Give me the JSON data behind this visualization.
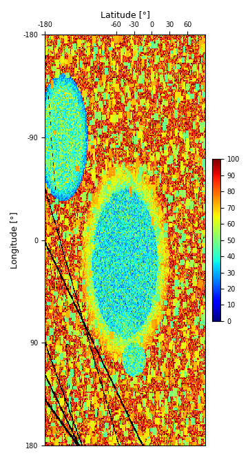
{
  "title": "Latitude [°]",
  "ylabel": "Longitude [°]",
  "colorbar_label": "",
  "xlim": [
    -180,
    90
  ],
  "ylim": [
    180,
    -180
  ],
  "xticks": [
    -180,
    -60,
    -30,
    0,
    30,
    60
  ],
  "yticks": [
    180,
    90,
    0,
    -90,
    -180
  ],
  "ytick_labels": [
    "180",
    "90",
    "0",
    "-90",
    "-180"
  ],
  "clim": [
    0,
    100
  ],
  "cticks": [
    0,
    10,
    20,
    30,
    40,
    50,
    60,
    70,
    80,
    90,
    100
  ],
  "cmap": "jet",
  "figsize": [
    3.63,
    6.66
  ],
  "dpi": 100,
  "colorbar_ticks_fontsize": 7,
  "axis_label_fontsize": 9,
  "tick_fontsize": 7,
  "background_color": "#ffffff",
  "seed": 123
}
